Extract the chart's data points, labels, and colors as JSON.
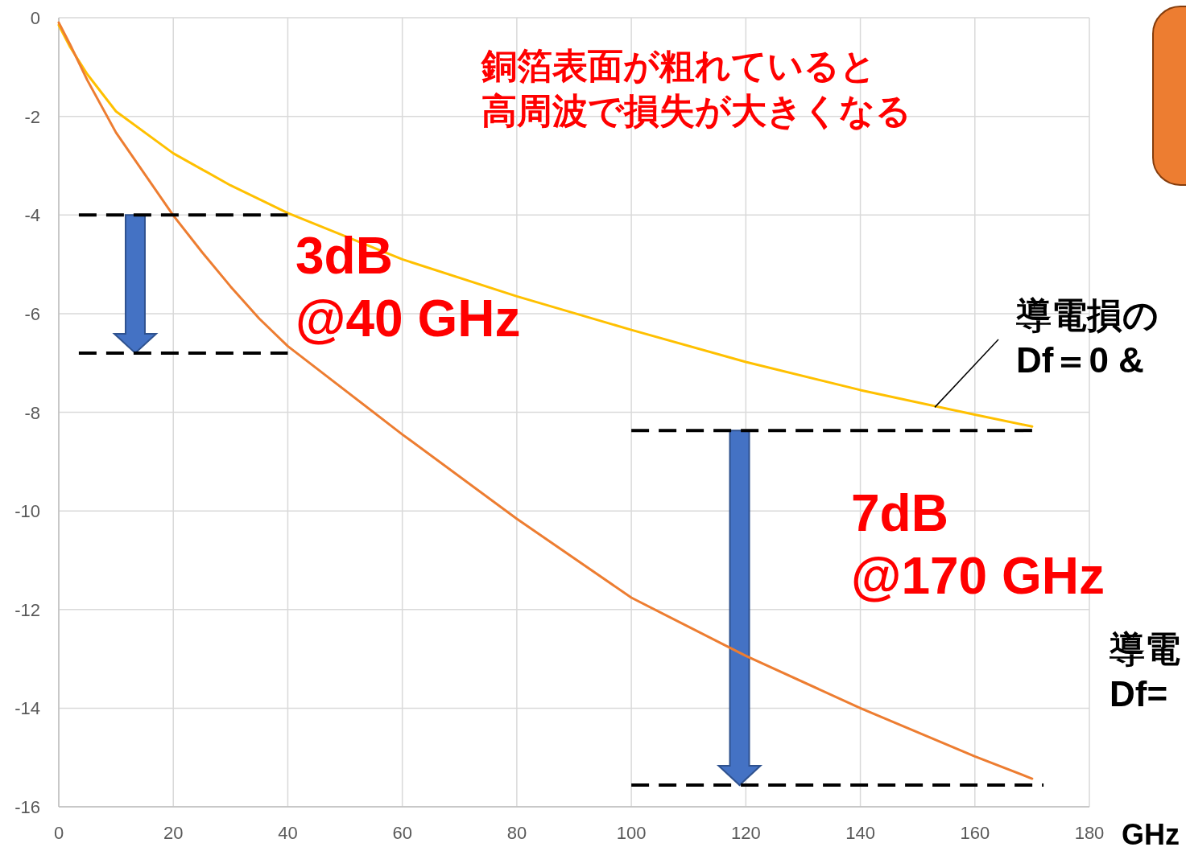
{
  "chart_data": {
    "type": "line",
    "xlabel": "GHz",
    "xlim": [
      0,
      180
    ],
    "ylim": [
      -16,
      0
    ],
    "xticks": [
      0,
      20,
      40,
      60,
      80,
      100,
      120,
      140,
      160,
      180
    ],
    "yticks": [
      -16,
      -14,
      -12,
      -10,
      -8,
      -6,
      -4,
      -2,
      0
    ],
    "grid": true,
    "series": [
      {
        "color": "#ffc000",
        "x": [
          0,
          2,
          5,
          10,
          20,
          30,
          40,
          60,
          80,
          100,
          120,
          140,
          160,
          170
        ],
        "values": [
          -0.15,
          -0.6,
          -1.15,
          -1.9,
          -2.75,
          -3.4,
          -3.96,
          -4.9,
          -5.65,
          -6.33,
          -6.98,
          -7.55,
          -8.05,
          -8.29
        ]
      },
      {
        "color": "#ed7d31",
        "x": [
          0,
          2,
          5,
          10,
          20,
          25,
          30,
          35,
          40,
          60,
          80,
          100,
          120,
          140,
          160,
          170
        ],
        "values": [
          -0.1,
          -0.55,
          -1.27,
          -2.33,
          -4.01,
          -4.75,
          -5.45,
          -6.1,
          -6.66,
          -8.45,
          -10.16,
          -11.76,
          -12.94,
          -14.0,
          -14.98,
          -15.43
        ]
      },
      {
        "color": "#000000",
        "line_style": "dashed",
        "x": [
          3.5,
          40
        ],
        "values": [
          -4.0,
          -4.0
        ]
      },
      {
        "color": "#000000",
        "line_style": "dashed",
        "x": [
          3.5,
          40
        ],
        "values": [
          -6.8,
          -6.8
        ]
      },
      {
        "color": "#000000",
        "line_style": "dashed",
        "x": [
          100,
          170
        ],
        "values": [
          -8.37,
          -8.37
        ]
      },
      {
        "color": "#000000",
        "line_style": "dashed",
        "x": [
          100,
          172
        ],
        "values": [
          -15.56,
          -15.56
        ]
      }
    ],
    "annotations": [
      "銅箔表面が粗れていると",
      "高周波で損失が大きくなる",
      "3dB\n@40 GHz",
      "7dB\n@170 GHz",
      {
        "text": "導電損の\nDf＝0 &",
        "x": 153,
        "y": -7.9
      },
      "導電\nDf="
    ]
  }
}
